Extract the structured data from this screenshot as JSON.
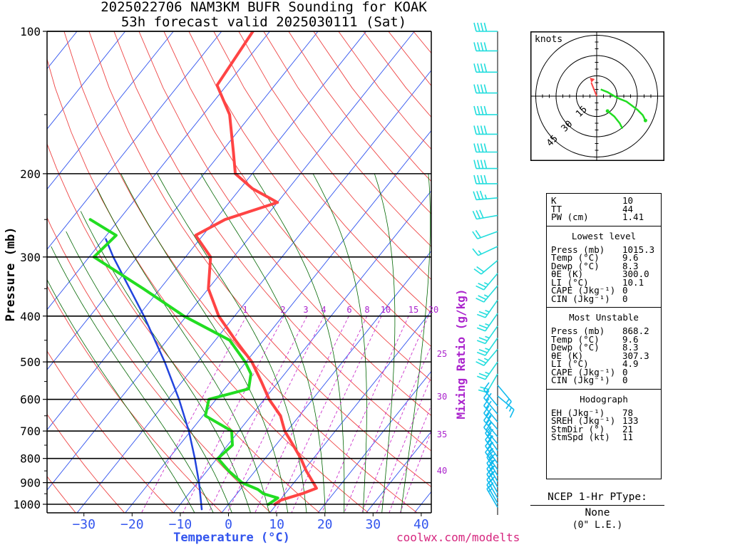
{
  "title_line1": "2025022706 NAM3KM BUFR Sounding for KOAK",
  "title_line2": "53h forecast valid 2025030111 (Sat)",
  "colors": {
    "temp": "#ff4444",
    "dew": "#22dd22",
    "parcel": "#2244dd",
    "isotherm": "#3355ee",
    "dry_adiabat": "#ee4444",
    "moist_adiabat": "#006600",
    "mixing": "#cc33cc",
    "wind_upper": "#22dddd",
    "wind_lower": "#11bbee",
    "footer": "#d6267f"
  },
  "chart_data": {
    "type": "skew-t",
    "ylabel": "Pressure (mb)",
    "xlabel": "Temperature (°C)",
    "mixing_ratio_label": "Mixing Ratio (g/kg)",
    "pressure_ticks": [
      "100",
      "200",
      "300",
      "400",
      "500",
      "600",
      "700",
      "800",
      "900",
      "1000"
    ],
    "temperature_ticks": [
      "−30",
      "−20",
      "−10",
      "0",
      "10",
      "20",
      "30",
      "40"
    ],
    "mixing_ratio_ticks": [
      "1",
      "2",
      "3",
      "4",
      "6",
      "8",
      "10",
      "15",
      "20",
      "25",
      "30",
      "35",
      "40"
    ],
    "temperature_profile": [
      {
        "p": 1000,
        "t": 9.6
      },
      {
        "p": 980,
        "t": 10.2
      },
      {
        "p": 950,
        "t": 13.5
      },
      {
        "p": 925,
        "t": 15.6
      },
      {
        "p": 900,
        "t": 14.0
      },
      {
        "p": 850,
        "t": 10.6
      },
      {
        "p": 800,
        "t": 7.4
      },
      {
        "p": 750,
        "t": 3.6
      },
      {
        "p": 700,
        "t": -0.5
      },
      {
        "p": 650,
        "t": -3.9
      },
      {
        "p": 600,
        "t": -9.0
      },
      {
        "p": 550,
        "t": -13.6
      },
      {
        "p": 500,
        "t": -18.8
      },
      {
        "p": 450,
        "t": -25.8
      },
      {
        "p": 400,
        "t": -33.3
      },
      {
        "p": 350,
        "t": -40.0
      },
      {
        "p": 300,
        "t": -44.8
      },
      {
        "p": 270,
        "t": -51.5
      },
      {
        "p": 250,
        "t": -48.0
      },
      {
        "p": 230,
        "t": -40.0
      },
      {
        "p": 215,
        "t": -47.5
      },
      {
        "p": 200,
        "t": -53.5
      },
      {
        "p": 180,
        "t": -57.5
      },
      {
        "p": 150,
        "t": -64.5
      },
      {
        "p": 130,
        "t": -72.0
      },
      {
        "p": 100,
        "t": -73.5
      }
    ],
    "dewpoint_profile": [
      {
        "p": 1000,
        "t": 8.3
      },
      {
        "p": 970,
        "t": 9.2
      },
      {
        "p": 950,
        "t": 5.5
      },
      {
        "p": 930,
        "t": 3.6
      },
      {
        "p": 900,
        "t": -0.8
      },
      {
        "p": 850,
        "t": -5.5
      },
      {
        "p": 800,
        "t": -9.8
      },
      {
        "p": 750,
        "t": -9.0
      },
      {
        "p": 700,
        "t": -11.5
      },
      {
        "p": 650,
        "t": -19.5
      },
      {
        "p": 600,
        "t": -21.5
      },
      {
        "p": 570,
        "t": -15.0
      },
      {
        "p": 530,
        "t": -17.0
      },
      {
        "p": 500,
        "t": -20.2
      },
      {
        "p": 450,
        "t": -27.0
      },
      {
        "p": 400,
        "t": -40.5
      },
      {
        "p": 350,
        "t": -53.5
      },
      {
        "p": 300,
        "t": -69.0
      },
      {
        "p": 270,
        "t": -68.0
      },
      {
        "p": 250,
        "t": -76.0
      }
    ],
    "parcel_profile": [
      {
        "p": 1025,
        "t": -4.7
      },
      {
        "p": 900,
        "t": -9.7
      },
      {
        "p": 800,
        "t": -14.6
      },
      {
        "p": 700,
        "t": -20.4
      },
      {
        "p": 600,
        "t": -27.7
      },
      {
        "p": 500,
        "t": -36.9
      },
      {
        "p": 400,
        "t": -48.8
      },
      {
        "p": 300,
        "t": -65.0
      },
      {
        "p": 275,
        "t": -69.5
      }
    ],
    "hodograph": {
      "label": "knots",
      "rings": [
        "15",
        "30",
        "45"
      ],
      "points": [
        {
          "u": 3,
          "v": -5
        },
        {
          "u": 8,
          "v": -3
        },
        {
          "u": 13,
          "v": 0
        },
        {
          "u": 17,
          "v": 2
        },
        {
          "u": 22,
          "v": 4
        },
        {
          "u": 26,
          "v": 7
        },
        {
          "u": 30,
          "v": 10
        },
        {
          "u": 34,
          "v": 14
        },
        {
          "u": 36,
          "v": 18
        }
      ],
      "points_upper": [
        {
          "u": 8,
          "v": 11
        },
        {
          "u": 13,
          "v": 15
        },
        {
          "u": 17,
          "v": 20
        },
        {
          "u": 19,
          "v": 24
        }
      ],
      "storm_motion": {
        "u": -4,
        "v": -10
      }
    }
  },
  "indices": {
    "k": {
      "label": "K",
      "value": "10"
    },
    "tt": {
      "label": "TT",
      "value": "44"
    },
    "pw": {
      "label": "PW (cm)",
      "value": "1.41"
    }
  },
  "lowest_level": {
    "heading": "Lowest level",
    "rows": [
      {
        "label": "Press (mb)",
        "value": "1015.3"
      },
      {
        "label": "Temp (°C)",
        "value": "9.6"
      },
      {
        "label": "Dewp (°C)",
        "value": "8.3"
      },
      {
        "label": "θE (K)",
        "value": "300.0"
      },
      {
        "label": "LI (°C)",
        "value": "10.1"
      },
      {
        "label": "CAPE (Jkg⁻¹)",
        "value": "0"
      },
      {
        "label": "CIN (Jkg⁻¹)",
        "value": "0"
      }
    ]
  },
  "most_unstable": {
    "heading": "Most Unstable",
    "rows": [
      {
        "label": "Press (mb)",
        "value": "868.2"
      },
      {
        "label": "Temp (°C)",
        "value": "9.6"
      },
      {
        "label": "Dewp (°C)",
        "value": "8.3"
      },
      {
        "label": "θE (K)",
        "value": "307.3"
      },
      {
        "label": "LI (°C)",
        "value": "4.9"
      },
      {
        "label": "CAPE (Jkg⁻¹)",
        "value": "0"
      },
      {
        "label": "CIN (Jkg⁻¹)",
        "value": "0"
      }
    ]
  },
  "hodograph_info": {
    "heading": "Hodograph",
    "rows": [
      {
        "label": "EH (Jkg⁻¹)",
        "value": "78"
      },
      {
        "label": "SREH (Jkg⁻¹)",
        "value": "133"
      },
      {
        "label": "StmDir (°)",
        "value": "21"
      },
      {
        "label": "StmSpd (kt)",
        "value": "11"
      }
    ]
  },
  "ptype": {
    "heading": "NCEP 1-Hr PType:",
    "value": "None",
    "note": "(0\" L.E.)"
  },
  "footer": "coolwx.com/modelts",
  "wind_barbs": [
    {
      "p": 100,
      "dir": 270,
      "spd": 40
    },
    {
      "p": 110,
      "dir": 270,
      "spd": 40
    },
    {
      "p": 122,
      "dir": 270,
      "spd": 40
    },
    {
      "p": 135,
      "dir": 270,
      "spd": 40
    },
    {
      "p": 150,
      "dir": 270,
      "spd": 40
    },
    {
      "p": 165,
      "dir": 270,
      "spd": 40
    },
    {
      "p": 180,
      "dir": 270,
      "spd": 40
    },
    {
      "p": 195,
      "dir": 270,
      "spd": 40
    },
    {
      "p": 210,
      "dir": 270,
      "spd": 40
    },
    {
      "p": 225,
      "dir": 265,
      "spd": 35
    },
    {
      "p": 245,
      "dir": 260,
      "spd": 30
    },
    {
      "p": 265,
      "dir": 250,
      "spd": 20
    },
    {
      "p": 285,
      "dir": 245,
      "spd": 15
    },
    {
      "p": 305,
      "dir": 230,
      "spd": 20
    },
    {
      "p": 325,
      "dir": 220,
      "spd": 25
    },
    {
      "p": 345,
      "dir": 220,
      "spd": 25
    },
    {
      "p": 370,
      "dir": 215,
      "spd": 25
    },
    {
      "p": 395,
      "dir": 215,
      "spd": 25
    },
    {
      "p": 420,
      "dir": 215,
      "spd": 25
    },
    {
      "p": 445,
      "dir": 215,
      "spd": 25
    },
    {
      "p": 470,
      "dir": 220,
      "spd": 25
    },
    {
      "p": 500,
      "dir": 215,
      "spd": 25
    },
    {
      "p": 530,
      "dir": 210,
      "spd": 20
    },
    {
      "p": 560,
      "dir": 140,
      "spd": 15
    },
    {
      "p": 590,
      "dir": 130,
      "spd": 15
    },
    {
      "p": 620,
      "dir": 320,
      "spd": 15
    },
    {
      "p": 645,
      "dir": 320,
      "spd": 20
    },
    {
      "p": 670,
      "dir": 320,
      "spd": 20
    },
    {
      "p": 695,
      "dir": 320,
      "spd": 25
    },
    {
      "p": 720,
      "dir": 320,
      "spd": 25
    },
    {
      "p": 745,
      "dir": 320,
      "spd": 25
    },
    {
      "p": 770,
      "dir": 325,
      "spd": 25
    },
    {
      "p": 795,
      "dir": 325,
      "spd": 25
    },
    {
      "p": 820,
      "dir": 325,
      "spd": 25
    },
    {
      "p": 845,
      "dir": 325,
      "spd": 25
    },
    {
      "p": 870,
      "dir": 330,
      "spd": 25
    },
    {
      "p": 895,
      "dir": 330,
      "spd": 25
    },
    {
      "p": 920,
      "dir": 330,
      "spd": 25
    },
    {
      "p": 945,
      "dir": 330,
      "spd": 20
    },
    {
      "p": 970,
      "dir": 330,
      "spd": 20
    },
    {
      "p": 995,
      "dir": 330,
      "spd": 15
    },
    {
      "p": 1015,
      "dir": 330,
      "spd": 15
    }
  ]
}
